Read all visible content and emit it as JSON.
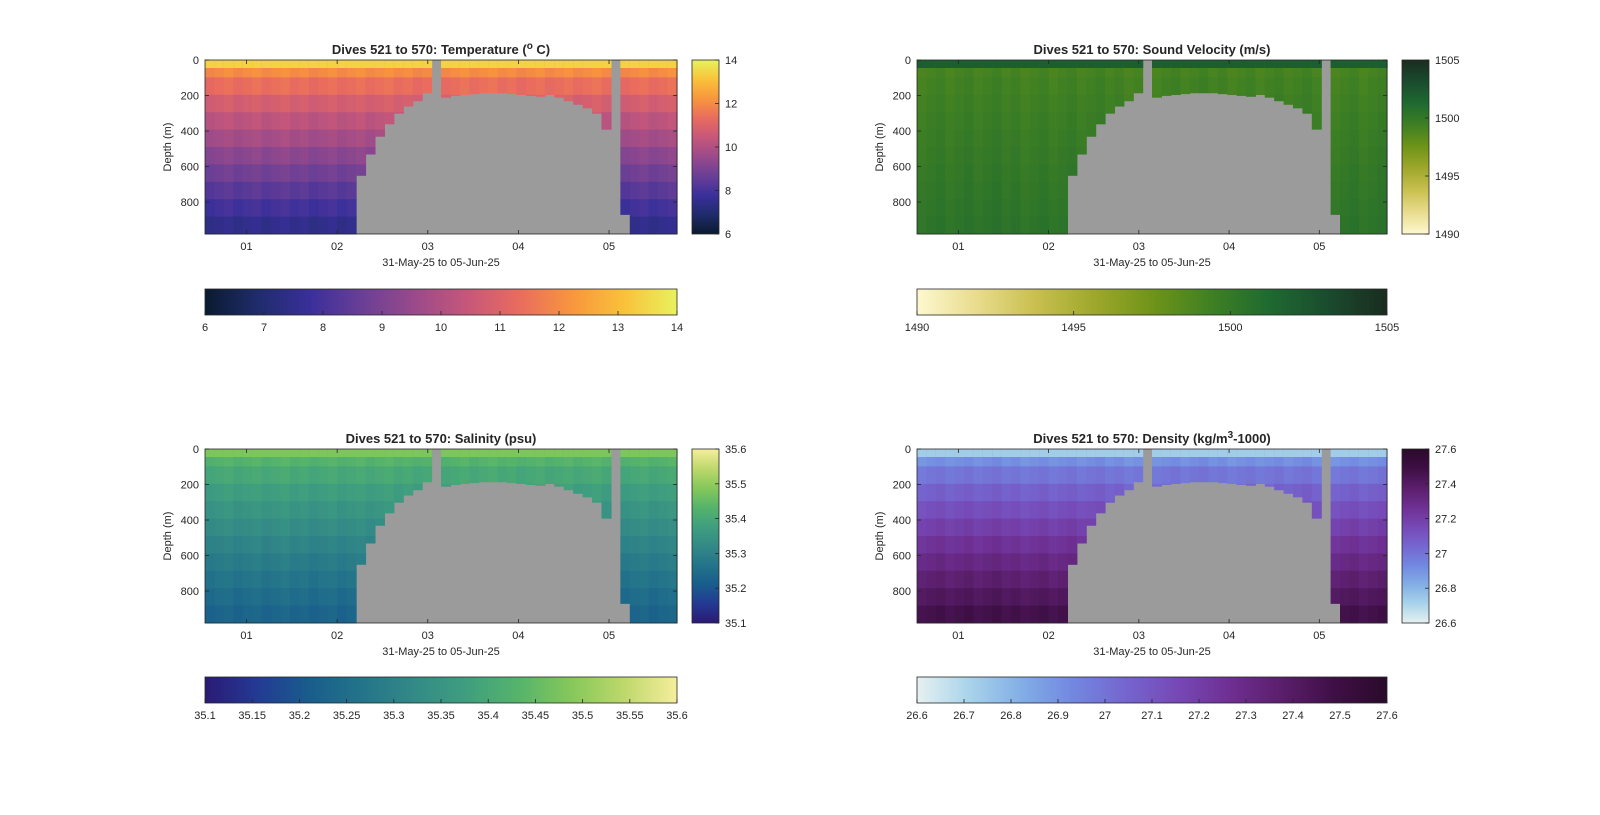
{
  "chart_data": [
    {
      "type": "heatmap",
      "title": "Dives 521 to 570: Temperature (",
      "title_sup": "o",
      "title_end": " C)",
      "xlabel": "31-May-25 to 05-Jun-25",
      "ylabel": "Depth (m)",
      "xticks": [
        "01",
        "02",
        "03",
        "04",
        "05"
      ],
      "yticks": [
        "0",
        "200",
        "400",
        "600",
        "800"
      ],
      "ylim": [
        0,
        980
      ],
      "colormap": "thermal",
      "colorbar_range": [
        6,
        14
      ],
      "colorbar_ticks": [
        "14",
        "12",
        "10",
        "8",
        "6"
      ],
      "hcolorbar_ticks": [
        "6",
        "7",
        "8",
        "9",
        "10",
        "11",
        "12",
        "13",
        "14"
      ],
      "surface_value": 12.5,
      "bottom_value": 7.3
    },
    {
      "type": "heatmap",
      "title": "Dives 521 to 570: Sound Velocity (m/s)",
      "title_sup": "",
      "title_end": "",
      "xlabel": "31-May-25 to 05-Jun-25",
      "ylabel": "Depth (m)",
      "xticks": [
        "01",
        "02",
        "03",
        "04",
        "05"
      ],
      "yticks": [
        "0",
        "200",
        "400",
        "600",
        "800"
      ],
      "ylim": [
        0,
        980
      ],
      "colormap": "speed",
      "colorbar_range": [
        1490,
        1505
      ],
      "colorbar_ticks": [
        "1505",
        "1500",
        "1495",
        "1490"
      ],
      "hcolorbar_ticks": [
        "1490",
        "1495",
        "1500",
        "1505"
      ],
      "surface_value": 1499,
      "bottom_value": 1500.5
    },
    {
      "type": "heatmap",
      "title": "Dives 521 to 570: Salinity (psu)",
      "title_sup": "",
      "title_end": "",
      "xlabel": "31-May-25 to 05-Jun-25",
      "ylabel": "Depth (m)",
      "xticks": [
        "01",
        "02",
        "03",
        "04",
        "05"
      ],
      "yticks": [
        "0",
        "200",
        "400",
        "600",
        "800"
      ],
      "ylim": [
        0,
        980
      ],
      "colormap": "haline",
      "colorbar_range": [
        35.1,
        35.6
      ],
      "colorbar_ticks": [
        "35.6",
        "35.5",
        "35.4",
        "35.3",
        "35.2",
        "35.1"
      ],
      "hcolorbar_ticks": [
        "35.1",
        "35.15",
        "35.2",
        "35.25",
        "35.3",
        "35.35",
        "35.4",
        "35.45",
        "35.5",
        "35.55",
        "35.6"
      ],
      "surface_value": 35.45,
      "bottom_value": 35.22
    },
    {
      "type": "heatmap",
      "title": "Dives 521 to 570: Density (kg/m",
      "title_sup": "3",
      "title_end": "-1000)",
      "xlabel": "31-May-25 to 05-Jun-25",
      "ylabel": "Depth (m)",
      "xticks": [
        "01",
        "02",
        "03",
        "04",
        "05"
      ],
      "yticks": [
        "0",
        "200",
        "400",
        "600",
        "800"
      ],
      "ylim": [
        0,
        980
      ],
      "colormap": "dense",
      "colorbar_range": [
        26.6,
        27.6
      ],
      "colorbar_ticks": [
        "27.6",
        "27.4",
        "27.2",
        "27",
        "26.8",
        "26.6"
      ],
      "hcolorbar_ticks": [
        "26.6",
        "26.7",
        "26.8",
        "26.9",
        "27",
        "27.1",
        "27.2",
        "27.3",
        "27.4",
        "27.5",
        "27.6"
      ],
      "surface_value": 26.85,
      "bottom_value": 27.5
    }
  ],
  "dives": {
    "count": 50,
    "no_data_columns": [
      0,
      1,
      2,
      3,
      4,
      5,
      6,
      7,
      8,
      9,
      10,
      11,
      12,
      13,
      14,
      15,
      16,
      17,
      18,
      19,
      20,
      21,
      22,
      23,
      24,
      25,
      26,
      27,
      28,
      29,
      30,
      31,
      32,
      33,
      34,
      35,
      36,
      37,
      38,
      39,
      40,
      41,
      42,
      43,
      44,
      45,
      46,
      47,
      48,
      49
    ],
    "max_depth_m": [
      980,
      980,
      980,
      980,
      980,
      980,
      980,
      980,
      980,
      980,
      980,
      980,
      980,
      980,
      980,
      980,
      650,
      530,
      430,
      360,
      300,
      260,
      230,
      185,
      0,
      210,
      200,
      195,
      190,
      185,
      185,
      185,
      190,
      195,
      200,
      205,
      195,
      210,
      230,
      250,
      270,
      300,
      390,
      0,
      870,
      980,
      980,
      980,
      980,
      980
    ],
    "gap_dives": [
      24,
      43
    ],
    "no_data_color": "#9b9b9b"
  }
}
